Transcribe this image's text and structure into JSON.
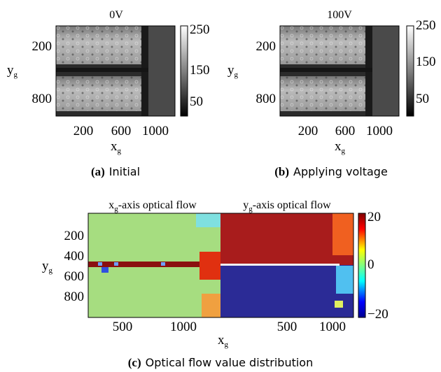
{
  "panel_a": {
    "title": "0V",
    "y_label": "y",
    "y_label_sub": "g",
    "y_ticks": [
      "200",
      "800"
    ],
    "x_ticks": [
      "200",
      "600",
      "1000"
    ],
    "x_label": "x",
    "x_label_sub": "g",
    "colorbar_ticks": [
      "250",
      "150",
      "50"
    ],
    "caption_tag": "(a)",
    "caption": "Initial"
  },
  "panel_b": {
    "title": "100V",
    "y_label": "y",
    "y_label_sub": "g",
    "y_ticks": [
      "200",
      "800"
    ],
    "x_ticks": [
      "200",
      "600",
      "1000"
    ],
    "x_label": "x",
    "x_label_sub": "g",
    "colorbar_ticks": [
      "250",
      "150",
      "50"
    ],
    "caption_tag": "(b)",
    "caption": "Applying voltage"
  },
  "panel_c": {
    "left_title": "x",
    "left_title_sub": "g",
    "left_title_rest": "-axis optical flow",
    "right_title": "y",
    "right_title_sub": "g",
    "right_title_rest": "-axis optical flow",
    "y_label": "y",
    "y_label_sub": "g",
    "y_ticks": [
      "200",
      "400",
      "600",
      "800"
    ],
    "left_x_ticks": [
      "500",
      "1000"
    ],
    "right_x_ticks": [
      "500",
      "1000"
    ],
    "x_label": "x",
    "x_label_sub": "g",
    "colorbar_ticks": [
      "20",
      "0",
      "−20"
    ],
    "caption_tag": "(c)",
    "caption": "Optical flow value distribution"
  }
}
